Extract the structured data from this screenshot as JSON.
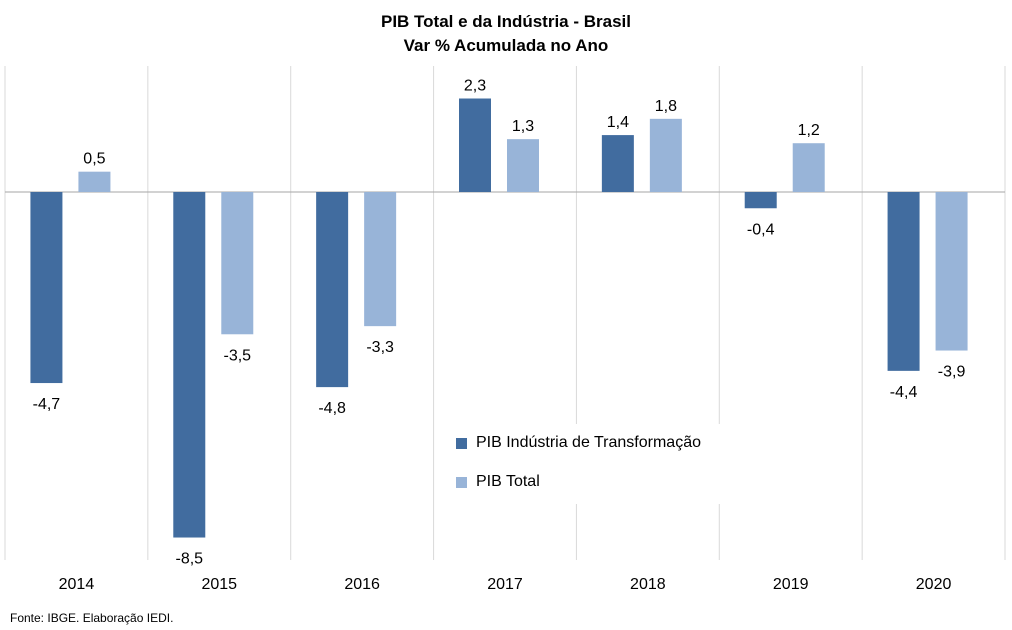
{
  "chart_data": {
    "type": "bar",
    "title": [
      "PIB Total e da Indústria  - Brasil",
      "Var % Acumulada no Ano"
    ],
    "categories": [
      "2014",
      "2015",
      "2016",
      "2017",
      "2018",
      "2019",
      "2020"
    ],
    "series": [
      {
        "name": "PIB Indústria de Transformação",
        "color": "#416c9f",
        "values": [
          -4.7,
          -8.5,
          -4.8,
          2.3,
          1.4,
          -0.4,
          -4.4
        ],
        "labels": [
          "-4,7",
          "-8,5",
          "-4,8",
          "2,3",
          "1,4",
          "-0,4",
          "-4,4"
        ]
      },
      {
        "name": "PIB Total",
        "color": "#98b4d8",
        "values": [
          0.5,
          -3.5,
          -3.3,
          1.3,
          1.8,
          1.2,
          -3.9
        ],
        "labels": [
          "0,5",
          "-3,5",
          "-3,3",
          "1,3",
          "1,8",
          "1,2",
          "-3,9"
        ]
      }
    ],
    "legend_position": "inside-bottom-center",
    "grid": "vertical category separators",
    "source": "Fonte: IBGE. Elaboração IEDI."
  }
}
